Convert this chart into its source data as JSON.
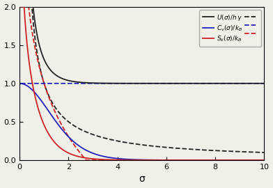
{
  "xlim": [
    0,
    10
  ],
  "ylim": [
    0.0,
    2.0
  ],
  "xlabel": "σ",
  "xticks": [
    0,
    2,
    4,
    6,
    8,
    10
  ],
  "yticks": [
    0.0,
    0.5,
    1.0,
    1.5,
    2.0
  ],
  "sigma_start": 0.05,
  "sigma_end": 10.0,
  "n_points": 5000,
  "color_black": "#222222",
  "color_blue": "#2222bb",
  "color_red": "#cc2222",
  "bg_color": "#f0efe8",
  "lw": 1.3
}
